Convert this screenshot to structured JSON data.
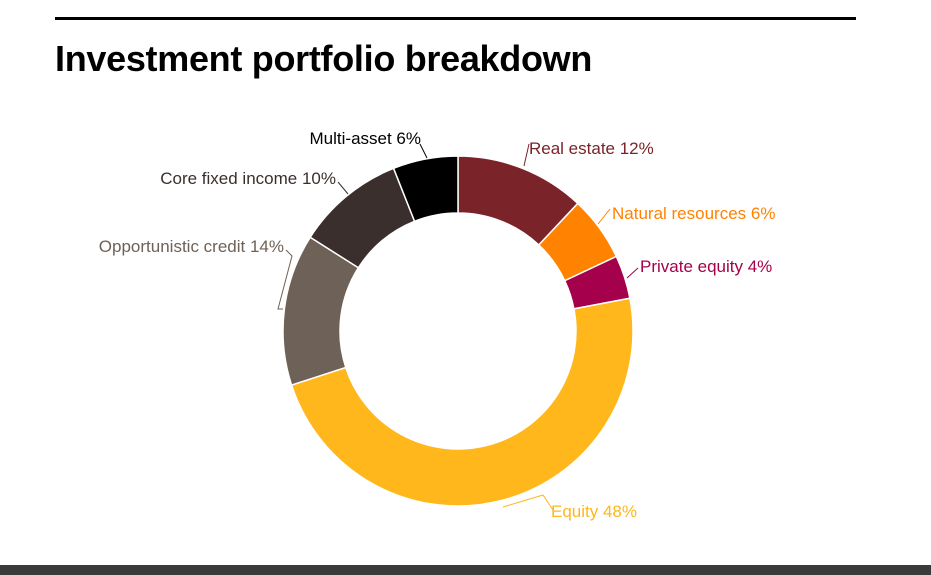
{
  "title": "Investment portfolio breakdown",
  "chart_data": {
    "type": "pie",
    "donut": true,
    "title": "Investment portfolio breakdown",
    "slices": [
      {
        "label": "Real estate",
        "value": 12,
        "text": "Real estate 12%",
        "color": "#7A2329"
      },
      {
        "label": "Natural resources",
        "value": 6,
        "text": "Natural resources 6%",
        "color": "#FF8200"
      },
      {
        "label": "Private equity",
        "value": 4,
        "text": "Private equity 4%",
        "color": "#A5004B"
      },
      {
        "label": "Equity",
        "value": 48,
        "text": "Equity 48%",
        "color": "#FFB71B"
      },
      {
        "label": "Opportunistic credit",
        "value": 14,
        "text": "Opportunistic credit 14%",
        "color": "#6E6157"
      },
      {
        "label": "Core fixed income",
        "value": 10,
        "text": "Core fixed income 10%",
        "color": "#3A2F2C"
      },
      {
        "label": "Multi-asset",
        "value": 6,
        "text": "Multi-asset 6%",
        "color": "#000000"
      }
    ],
    "label_colors": {
      "Real estate": "#7A2329",
      "Natural resources": "#FF8200",
      "Private equity": "#A5004B",
      "Equity": "#FFB71B",
      "Opportunistic credit": "#6E6157",
      "Core fixed income": "#3A2F2C",
      "Multi-asset": "#000000"
    }
  }
}
